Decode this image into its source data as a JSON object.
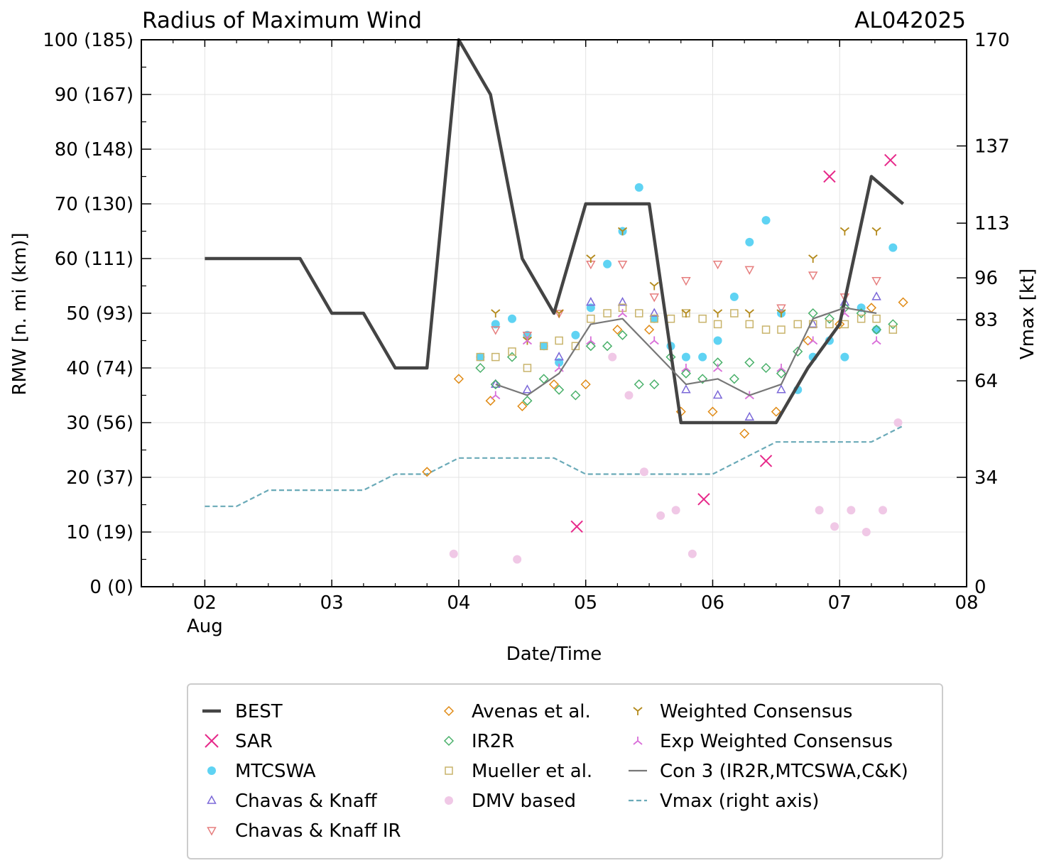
{
  "chart_data": {
    "type": "line",
    "title": "Radius of Maximum Wind",
    "storm_id": "AL042025",
    "xlabel": "Date/Time",
    "ylabel": "RMW [n. mi (km)]",
    "ylabel_right": "Vmax [kt]",
    "xlim": [
      1.5,
      8.0
    ],
    "ylim": [
      0,
      100
    ],
    "xticks": [
      {
        "value": 2,
        "label": "02",
        "sub": "Aug"
      },
      {
        "value": 3,
        "label": "03"
      },
      {
        "value": 4,
        "label": "04"
      },
      {
        "value": 5,
        "label": "05"
      },
      {
        "value": 6,
        "label": "06"
      },
      {
        "value": 7,
        "label": "07"
      },
      {
        "value": 8,
        "label": "08"
      }
    ],
    "yticks": [
      {
        "value": 0,
        "label": "0 (0)"
      },
      {
        "value": 10,
        "label": "10 (19)"
      },
      {
        "value": 20,
        "label": "20 (37)"
      },
      {
        "value": 30,
        "label": "30 (56)"
      },
      {
        "value": 40,
        "label": "40 (74)"
      },
      {
        "value": 50,
        "label": "50 (93)"
      },
      {
        "value": 60,
        "label": "60 (111)"
      },
      {
        "value": 70,
        "label": "70 (130)"
      },
      {
        "value": 80,
        "label": "80 (148)"
      },
      {
        "value": 90,
        "label": "90 (167)"
      },
      {
        "value": 100,
        "label": "100 (185)"
      }
    ],
    "right_ylim": [
      0,
      170
    ],
    "right_yticks": [
      {
        "value": 0,
        "label": "0"
      },
      {
        "value": 34,
        "label": "34"
      },
      {
        "value": 64,
        "label": "64"
      },
      {
        "value": 83,
        "label": "83"
      },
      {
        "value": 96,
        "label": "96"
      },
      {
        "value": 113,
        "label": "113"
      },
      {
        "value": 137,
        "label": "137"
      },
      {
        "value": 170,
        "label": "170"
      }
    ],
    "series": [
      {
        "name": "BEST",
        "kind": "line",
        "style": "solid",
        "color": "#444444",
        "x": [
          2.0,
          2.25,
          2.5,
          2.75,
          3.0,
          3.25,
          3.5,
          3.75,
          4.0,
          4.25,
          4.5,
          4.75,
          5.0,
          5.25,
          5.5,
          5.75,
          6.0,
          6.25,
          6.5,
          6.75,
          7.0,
          7.25,
          7.5
        ],
        "y": [
          60,
          60,
          60,
          60,
          50,
          50,
          40,
          40,
          100,
          90,
          60,
          50,
          70,
          70,
          70,
          30,
          30,
          30,
          30,
          40,
          48,
          75,
          70
        ]
      },
      {
        "name": "SAR",
        "kind": "marker",
        "marker": "x",
        "color": "#e7298a",
        "x": [
          4.93,
          5.93,
          6.42,
          6.92,
          7.4
        ],
        "y": [
          11,
          16,
          23,
          75,
          78
        ]
      },
      {
        "name": "MTCSWA",
        "kind": "marker",
        "marker": "dot",
        "color": "#5fd3f3",
        "x": [
          4.17,
          4.29,
          4.42,
          4.54,
          4.67,
          4.79,
          4.92,
          5.04,
          5.17,
          5.29,
          5.42,
          5.54,
          5.67,
          5.79,
          5.92,
          6.04,
          6.17,
          6.29,
          6.42,
          6.54,
          6.67,
          6.79,
          6.92,
          7.04,
          7.17,
          7.29,
          7.42
        ],
        "y": [
          42,
          48,
          49,
          46,
          44,
          41,
          46,
          51,
          59,
          65,
          73,
          49,
          44,
          42,
          42,
          45,
          53,
          63,
          67,
          50,
          36,
          42,
          45,
          42,
          51,
          47,
          62
        ]
      },
      {
        "name": "Chavas & Knaff",
        "kind": "marker",
        "marker": "triangle-up",
        "color": "#7b68d8",
        "x": [
          4.29,
          4.54,
          4.79,
          5.04,
          5.29,
          5.54,
          5.79,
          6.04,
          6.29,
          6.54,
          6.79,
          7.04,
          7.29
        ],
        "y": [
          37,
          36,
          42,
          52,
          52,
          50,
          36,
          35,
          31,
          36,
          48,
          52,
          53
        ]
      },
      {
        "name": "Chavas & Knaff IR",
        "kind": "marker",
        "marker": "triangle-down",
        "color": "#e67e7e",
        "x": [
          4.29,
          4.54,
          4.79,
          5.04,
          5.29,
          5.54,
          5.79,
          6.04,
          6.29,
          6.54,
          6.79,
          7.04,
          7.29
        ],
        "y": [
          47,
          46,
          50,
          59,
          59,
          53,
          56,
          59,
          58,
          51,
          57,
          53,
          56
        ]
      },
      {
        "name": "Avenas et al.",
        "kind": "marker",
        "marker": "diamond",
        "color": "#e08a14",
        "x": [
          3.75,
          4.0,
          4.25,
          4.5,
          4.75,
          5.0,
          5.25,
          5.5,
          5.75,
          6.0,
          6.25,
          6.5,
          6.75,
          7.0,
          7.25,
          7.5
        ],
        "y": [
          21,
          38,
          34,
          33,
          37,
          37,
          47,
          47,
          32,
          32,
          28,
          32,
          45,
          48,
          51,
          52
        ]
      },
      {
        "name": "IR2R",
        "kind": "marker",
        "marker": "diamond",
        "color": "#49b06a",
        "x": [
          4.17,
          4.29,
          4.42,
          4.54,
          4.67,
          4.79,
          4.92,
          5.04,
          5.17,
          5.29,
          5.42,
          5.54,
          5.67,
          5.79,
          5.92,
          6.04,
          6.17,
          6.29,
          6.42,
          6.54,
          6.67,
          6.79,
          6.92,
          7.04,
          7.17,
          7.29,
          7.42
        ],
        "y": [
          40,
          37,
          42,
          34,
          38,
          36,
          35,
          44,
          44,
          46,
          37,
          37,
          42,
          39,
          38,
          41,
          38,
          41,
          40,
          39,
          43,
          50,
          49,
          51,
          50,
          47,
          48
        ]
      },
      {
        "name": "Mueller et al.",
        "kind": "marker",
        "marker": "square",
        "color": "#c8b36a",
        "x": [
          4.17,
          4.29,
          4.42,
          4.54,
          4.67,
          4.79,
          4.92,
          5.04,
          5.17,
          5.29,
          5.42,
          5.54,
          5.67,
          5.79,
          5.92,
          6.04,
          6.17,
          6.29,
          6.42,
          6.54,
          6.67,
          6.79,
          6.92,
          7.04,
          7.17,
          7.29,
          7.42
        ],
        "y": [
          42,
          42,
          43,
          40,
          44,
          45,
          44,
          49,
          50,
          51,
          50,
          49,
          49,
          50,
          49,
          48,
          50,
          48,
          47,
          47,
          48,
          48,
          48,
          48,
          49,
          49,
          47
        ]
      },
      {
        "name": "DMV based",
        "kind": "marker",
        "marker": "dot",
        "color": "#f0c8e6",
        "x": [
          3.96,
          4.46,
          5.21,
          5.34,
          5.46,
          5.59,
          5.71,
          5.84,
          6.84,
          6.96,
          7.09,
          7.21,
          7.34,
          7.46
        ],
        "y": [
          6,
          5,
          42,
          35,
          21,
          13,
          14,
          6,
          14,
          11,
          14,
          10,
          14,
          30
        ]
      },
      {
        "name": "Weighted Consensus",
        "kind": "marker",
        "marker": "tri-down",
        "color": "#b48a1c",
        "x": [
          4.29,
          4.54,
          4.79,
          5.04,
          5.29,
          5.54,
          5.79,
          6.04,
          6.29,
          6.54,
          6.79,
          7.04,
          7.29
        ],
        "y": [
          50,
          45,
          50,
          60,
          65,
          55,
          50,
          50,
          50,
          50,
          60,
          65,
          65
        ]
      },
      {
        "name": "Exp Weighted Consensus",
        "kind": "marker",
        "marker": "tri-up",
        "color": "#d96fd9",
        "x": [
          4.29,
          4.54,
          4.79,
          5.04,
          5.29,
          5.54,
          5.79,
          6.04,
          6.29,
          6.54,
          6.79,
          7.04,
          7.29
        ],
        "y": [
          35,
          45,
          40,
          45,
          50,
          45,
          40,
          40,
          35,
          40,
          45,
          50,
          45
        ]
      },
      {
        "name": "Con 3 (IR2R,MTCSWA,C&K)",
        "kind": "line",
        "style": "solid",
        "color": "#777777",
        "x": [
          4.29,
          4.54,
          4.79,
          5.04,
          5.29,
          5.54,
          5.79,
          6.04,
          6.29,
          6.54,
          6.79,
          7.04,
          7.29
        ],
        "y": [
          37,
          35,
          39,
          48,
          49,
          43,
          37,
          38,
          35,
          37,
          49,
          51,
          50
        ]
      },
      {
        "name": "Vmax (right axis)",
        "kind": "line",
        "style": "dashed",
        "color": "#6aaab8",
        "axis": "right",
        "x": [
          2.0,
          2.25,
          2.5,
          2.75,
          3.0,
          3.25,
          3.5,
          3.75,
          4.0,
          4.25,
          4.5,
          4.75,
          5.0,
          5.25,
          5.5,
          5.75,
          6.0,
          6.25,
          6.5,
          6.75,
          7.0,
          7.25,
          7.5
        ],
        "y": [
          25,
          25,
          30,
          30,
          30,
          30,
          35,
          35,
          40,
          40,
          40,
          40,
          35,
          35,
          35,
          35,
          35,
          40,
          45,
          45,
          45,
          45,
          50
        ]
      }
    ]
  },
  "legend": {
    "columns": [
      [
        "BEST",
        "SAR",
        "MTCSWA",
        "Chavas & Knaff",
        "Chavas & Knaff IR"
      ],
      [
        "Avenas et al.",
        "IR2R",
        "Mueller et al.",
        "DMV based"
      ],
      [
        "Weighted Consensus",
        "Exp Weighted Consensus",
        "Con 3 (IR2R,MTCSWA,C&K)",
        "Vmax (right axis)"
      ]
    ]
  }
}
